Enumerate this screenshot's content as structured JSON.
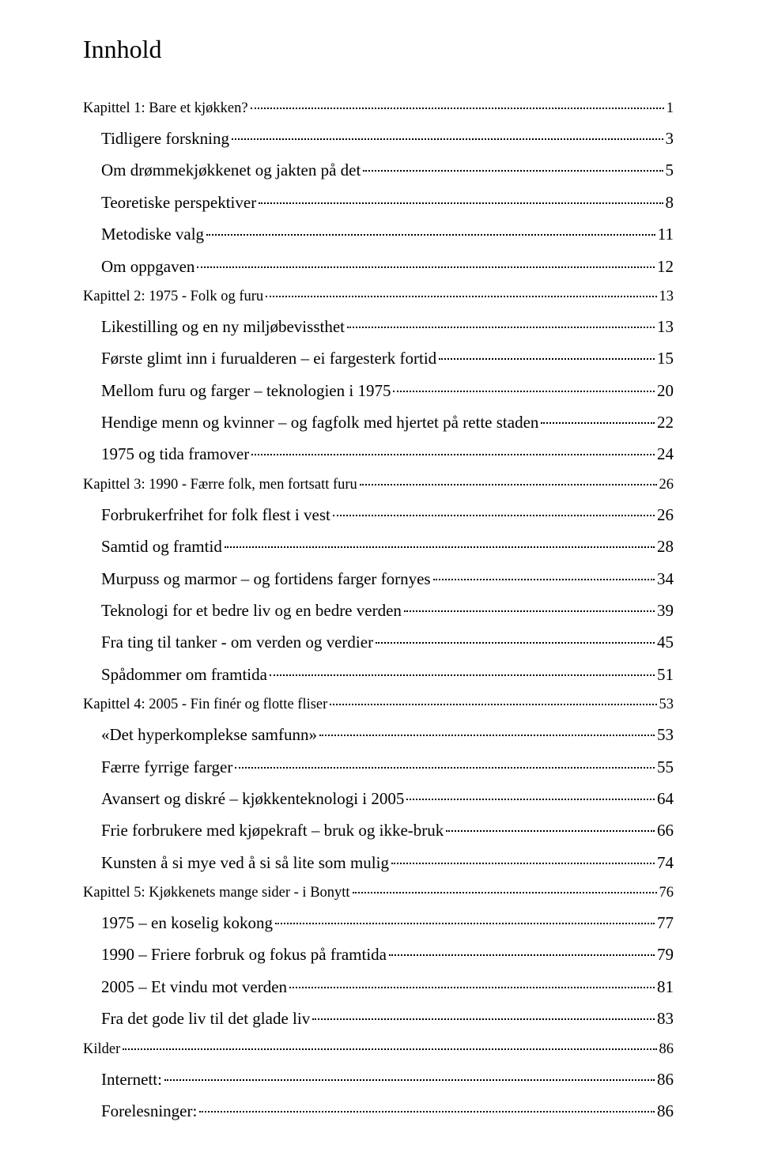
{
  "title": "Innhold",
  "entries": [
    {
      "level": "chapter",
      "label": "Kapittel 1:  Bare et kjøkken?",
      "page": "1"
    },
    {
      "level": "sub",
      "label": "Tidligere forskning",
      "page": "3"
    },
    {
      "level": "sub",
      "label": "Om drømmekjøkkenet og jakten på det",
      "page": "5"
    },
    {
      "level": "sub",
      "label": "Teoretiske perspektiver",
      "page": "8"
    },
    {
      "level": "sub",
      "label": "Metodiske valg",
      "page": "11"
    },
    {
      "level": "sub",
      "label": "Om oppgaven",
      "page": "12"
    },
    {
      "level": "chapter",
      "label": "Kapittel 2:  1975 - Folk og furu",
      "page": "13"
    },
    {
      "level": "sub",
      "label": "Likestilling og en ny miljøbevissthet",
      "page": "13"
    },
    {
      "level": "sub",
      "label": "Første glimt inn i furualderen – ei fargesterk fortid",
      "page": "15"
    },
    {
      "level": "sub",
      "label": "Mellom furu og farger – teknologien i 1975",
      "page": "20"
    },
    {
      "level": "sub",
      "label": "Hendige menn og kvinner – og fagfolk med hjertet på rette staden",
      "page": "22"
    },
    {
      "level": "sub",
      "label": "1975 og tida framover",
      "page": "24"
    },
    {
      "level": "chapter",
      "label": "Kapittel 3:  1990 - Færre folk, men fortsatt furu",
      "page": "26"
    },
    {
      "level": "sub",
      "label": "Forbrukerfrihet for folk flest i vest",
      "page": "26"
    },
    {
      "level": "sub",
      "label": "Samtid og framtid",
      "page": "28"
    },
    {
      "level": "sub",
      "label": "Murpuss og marmor – og fortidens farger fornyes",
      "page": "34"
    },
    {
      "level": "sub",
      "label": "Teknologi for et bedre liv og en bedre verden",
      "page": "39"
    },
    {
      "level": "sub",
      "label": "Fra ting til tanker - om verden og verdier",
      "page": "45"
    },
    {
      "level": "sub",
      "label": "Spådommer om framtida",
      "page": "51"
    },
    {
      "level": "chapter",
      "label": "Kapittel 4:  2005 - Fin finér og flotte fliser",
      "page": "53"
    },
    {
      "level": "sub",
      "label": "«Det hyperkomplekse samfunn»",
      "page": "53"
    },
    {
      "level": "sub",
      "label": "Færre fyrrige farger",
      "page": "55"
    },
    {
      "level": "sub",
      "label": "Avansert og diskré – kjøkkenteknologi i 2005",
      "page": "64"
    },
    {
      "level": "sub",
      "label": "Frie forbrukere med kjøpekraft – bruk og ikke-bruk",
      "page": "66"
    },
    {
      "level": "sub",
      "label": "Kunsten å si mye ved å si så lite som mulig",
      "page": "74"
    },
    {
      "level": "chapter",
      "label": "Kapittel 5:  Kjøkkenets mange sider -  i Bonytt",
      "page": "76"
    },
    {
      "level": "sub",
      "label": "1975 – en koselig kokong",
      "page": "77"
    },
    {
      "level": "sub",
      "label": "1990 – Friere forbruk og fokus på framtida",
      "page": "79"
    },
    {
      "level": "sub",
      "label": "2005 – Et vindu mot verden",
      "page": "81"
    },
    {
      "level": "sub",
      "label": "Fra det gode liv til det glade liv",
      "page": "83"
    },
    {
      "level": "chapter",
      "label": "Kilder",
      "page": "86"
    },
    {
      "level": "sub",
      "label": "Internett:",
      "page": "86"
    },
    {
      "level": "sub",
      "label": "Forelesninger:",
      "page": "86"
    }
  ]
}
